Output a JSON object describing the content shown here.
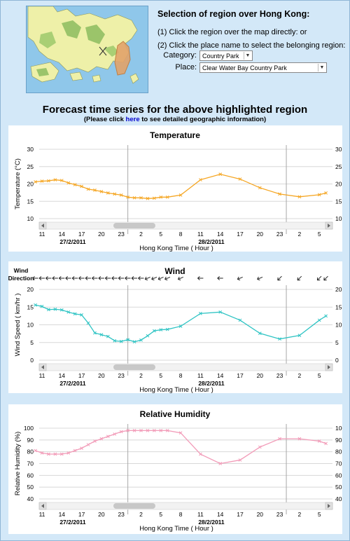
{
  "selection": {
    "title": "Selection of region over Hong Kong:",
    "step1": "(1) Click the region over the map directly: or",
    "step2": "(2) Click the place name to select the belonging region:",
    "category_label": "Category:",
    "category_value": "Country Park",
    "place_label": "Place:",
    "place_value": "Clear Water Bay Country Park"
  },
  "forecast": {
    "title": "Forecast time series for the above highlighted region",
    "sub_prefix": "(Please click ",
    "sub_link": "here",
    "sub_suffix": " to see detailed geographic information)"
  },
  "colors": {
    "temperature": "#f5a623",
    "wind": "#2fc4c4",
    "humidity": "#f29bb8",
    "grid": "#d8d8d8"
  },
  "chart_data": [
    {
      "type": "line",
      "title": "Temperature",
      "ylabel": "Temperature (°C)",
      "xlabel": "Hong Kong Time ( Hour )",
      "ylim": [
        10,
        30
      ],
      "yticks": [
        10,
        15,
        20,
        25,
        30
      ],
      "x_tick_labels": [
        "11",
        "14",
        "17",
        "20",
        "23",
        "2",
        "5",
        "8",
        "11",
        "14",
        "17",
        "20",
        "23",
        "2",
        "5"
      ],
      "dates": [
        "27/2/2011",
        "28/2/2011"
      ],
      "series": [
        {
          "x": [
            10,
            11,
            12,
            13,
            14,
            15,
            16,
            17,
            18,
            19,
            20,
            21,
            22,
            23,
            0,
            1,
            2,
            3,
            4,
            5,
            6,
            8,
            11,
            14,
            17,
            20,
            23,
            2,
            5,
            6
          ],
          "y": [
            20.6,
            20.8,
            20.9,
            21.2,
            21.0,
            20.3,
            19.8,
            19.3,
            18.5,
            18.2,
            17.8,
            17.4,
            17.1,
            16.8,
            16.2,
            16.0,
            16.0,
            15.8,
            15.9,
            16.2,
            16.2,
            16.8,
            21.2,
            22.8,
            21.4,
            18.9,
            17.1,
            16.3,
            16.9,
            17.4
          ]
        }
      ]
    },
    {
      "type": "line",
      "title": "Wind",
      "ylabel": "Wind Speed ( km/hr )",
      "xlabel": "Hong Kong Time ( Hour )",
      "row_label_1": "Wind",
      "row_label_2": "Direction",
      "ylim": [
        0,
        20
      ],
      "yticks": [
        0,
        5,
        10,
        15,
        20
      ],
      "x_tick_labels": [
        "11",
        "14",
        "17",
        "20",
        "23",
        "2",
        "5",
        "8",
        "11",
        "14",
        "17",
        "20",
        "23",
        "2",
        "5"
      ],
      "dates": [
        "27/2/2011",
        "28/2/2011"
      ],
      "series": [
        {
          "x": [
            10,
            11,
            12,
            13,
            14,
            15,
            16,
            17,
            18,
            19,
            20,
            21,
            22,
            23,
            0,
            1,
            2,
            3,
            4,
            5,
            6,
            8,
            11,
            14,
            17,
            20,
            23,
            2,
            5,
            6
          ],
          "y": [
            15.6,
            15.2,
            14.3,
            14.4,
            14.2,
            13.6,
            13.1,
            12.8,
            10.5,
            7.7,
            7.2,
            6.7,
            5.5,
            5.3,
            5.8,
            5.2,
            5.7,
            6.9,
            8.3,
            8.6,
            8.7,
            9.6,
            13.2,
            13.6,
            11.3,
            7.6,
            6.0,
            7.0,
            11.3,
            12.5
          ]
        }
      ],
      "wind_directions": [
        "E",
        "E",
        "E",
        "E",
        "E",
        "E",
        "E",
        "E",
        "E",
        "E",
        "E",
        "E",
        "E",
        "E",
        "E",
        "E",
        "E",
        "ENE",
        "ENE",
        "ENE",
        "ENE",
        "ENE",
        "E",
        "E",
        "ENE",
        "ENE",
        "NE",
        "NE",
        "NE",
        "NE"
      ]
    },
    {
      "type": "line",
      "title": "Relative Humidity",
      "ylabel": "Relative Humidity (%)",
      "xlabel": "Hong Kong Time ( Hour )",
      "ylim": [
        40,
        100
      ],
      "yticks": [
        40,
        50,
        60,
        70,
        80,
        90,
        100
      ],
      "x_tick_labels": [
        "11",
        "14",
        "17",
        "20",
        "23",
        "2",
        "5",
        "8",
        "11",
        "14",
        "17",
        "20",
        "23",
        "2",
        "5"
      ],
      "dates": [
        "27/2/2011",
        "28/2/2011"
      ],
      "series": [
        {
          "x": [
            10,
            11,
            12,
            13,
            14,
            15,
            16,
            17,
            18,
            19,
            20,
            21,
            22,
            23,
            0,
            1,
            2,
            3,
            4,
            5,
            6,
            8,
            11,
            14,
            17,
            20,
            23,
            2,
            5,
            6
          ],
          "y": [
            81,
            79,
            78,
            78,
            78,
            79,
            81,
            83,
            86,
            89,
            91,
            93,
            95,
            97,
            98,
            98,
            98,
            98,
            98,
            98,
            98,
            96,
            78,
            70,
            73,
            84,
            91,
            91,
            89,
            87
          ]
        }
      ]
    }
  ]
}
